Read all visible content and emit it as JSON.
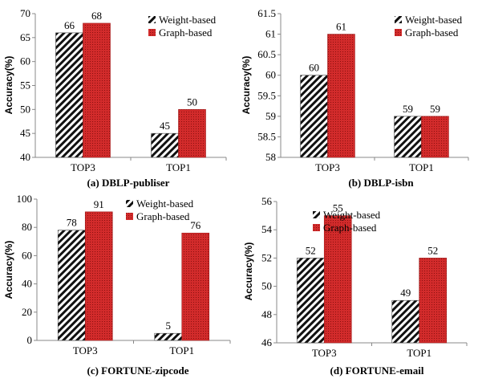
{
  "colors": {
    "graph_fill": "#d22b2b",
    "graph_dot": "#8a1010",
    "weight_hatch": "#111111",
    "axis": "#888888"
  },
  "chart_data": [
    {
      "type": "bar",
      "caption": "(a) DBLP-publiser",
      "ylabel": "Accuracy(%)",
      "categories": [
        "TOP3",
        "TOP1"
      ],
      "ylim": [
        40,
        70
      ],
      "yticks": [
        "40",
        "45",
        "50",
        "55",
        "60",
        "65",
        "70"
      ],
      "series": [
        {
          "name": "Weight-based",
          "values": [
            66,
            45
          ],
          "labels": [
            "66",
            "45"
          ]
        },
        {
          "name": "Graph-based",
          "values": [
            68,
            50
          ],
          "labels": [
            "68",
            "50"
          ]
        }
      ],
      "legend": "top-right"
    },
    {
      "type": "bar",
      "caption": "(b) DBLP-isbn",
      "ylabel": "Accuracy(%)",
      "categories": [
        "TOP3",
        "TOP1"
      ],
      "ylim": [
        58,
        61.5
      ],
      "yticks": [
        "58",
        "58.5",
        "59",
        "59.5",
        "60",
        "60.5",
        "61",
        "61.5"
      ],
      "series": [
        {
          "name": "Weight-based",
          "values": [
            60,
            59
          ],
          "labels": [
            "60",
            "59"
          ]
        },
        {
          "name": "Graph-based",
          "values": [
            61,
            59
          ],
          "labels": [
            "61",
            "59"
          ]
        }
      ],
      "legend": "top-right"
    },
    {
      "type": "bar",
      "caption": "(c) FORTUNE-zipcode",
      "ylabel": "Accuracy(%)",
      "categories": [
        "TOP3",
        "TOP1"
      ],
      "ylim": [
        0,
        100
      ],
      "yticks": [
        "0",
        "20",
        "40",
        "60",
        "80",
        "100"
      ],
      "series": [
        {
          "name": "Weight-based",
          "values": [
            78,
            5
          ],
          "labels": [
            "78",
            "5"
          ]
        },
        {
          "name": "Graph-based",
          "values": [
            91,
            76
          ],
          "labels": [
            "91",
            "76"
          ]
        }
      ],
      "legend": "top-right"
    },
    {
      "type": "bar",
      "caption": "(d) FORTUNE-email",
      "ylabel": "Accuracy(%)",
      "categories": [
        "TOP3",
        "TOP1"
      ],
      "ylim": [
        46,
        56
      ],
      "yticks": [
        "46",
        "48",
        "50",
        "52",
        "54",
        "56"
      ],
      "series": [
        {
          "name": "Weight-based",
          "values": [
            52,
            49
          ],
          "labels": [
            "52",
            "49"
          ]
        },
        {
          "name": "Graph-based",
          "values": [
            55,
            52
          ],
          "labels": [
            "55",
            "52"
          ]
        }
      ],
      "legend": "top-right"
    }
  ]
}
